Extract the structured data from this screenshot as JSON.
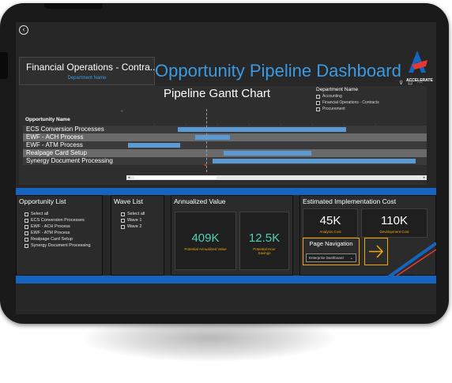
{
  "header": {
    "department_select": "Financial Operations - Contra...",
    "department_label": "Department Name",
    "title": "Opportunity Pipeline Dashboard",
    "logo_text": "ACCELERATE",
    "toolbar_glyphs": "⊽ ⊡ ⋯"
  },
  "gantt": {
    "title": "Pipeline Gantt Chart",
    "column_header": "Opportunity Name",
    "collapse_glyph": "«",
    "legend": {
      "title": "Department Name",
      "items": [
        {
          "label": "Accounting",
          "checked": false
        },
        {
          "label": "Financial Operations - Contracts",
          "checked": true
        },
        {
          "label": "Procurement",
          "checked": false
        }
      ]
    },
    "rows": [
      {
        "label": "ECS Conversion Processes",
        "start": 0.17,
        "end": 0.75
      },
      {
        "label": "EWF - ACH Process",
        "start": 0.23,
        "end": 0.35
      },
      {
        "label": "EWF - ATM Process",
        "start": 0.0,
        "end": 0.18
      },
      {
        "label": "Realpage Card Setup",
        "start": 0.33,
        "end": 0.63
      },
      {
        "label": "Synergy Document Processing",
        "start": 0.29,
        "end": 0.99
      }
    ]
  },
  "opportunity_list": {
    "title": "Opportunity List",
    "items": [
      "Select all",
      "ECS Conversion Processes",
      "EWF - ACH Process",
      "EWF - ATM Process",
      "Realpage Card Setup",
      "Synergy Document Processing"
    ]
  },
  "wave_list": {
    "title": "Wave List",
    "items": [
      "Select all",
      "Wave 1",
      "Wave 2"
    ]
  },
  "annualized": {
    "title": "Annualized Value",
    "value_1": "409K",
    "label_1": "Potential Annualized Value",
    "value_2": "12.5K",
    "label_2": "Potential Hour Savings"
  },
  "cost": {
    "title": "Estimated Implementation Cost",
    "value_1": "45K",
    "label_1": "Analysis Cost",
    "value_2": "110K",
    "label_2": "Development Cost"
  },
  "navigation": {
    "title": "Page Navigation",
    "selected": "Enterprise Dashboard",
    "chevron": "⌄"
  },
  "colors": {
    "accent_blue": "#3b9ae1",
    "band_blue": "#1565c0",
    "bar_blue": "#5b9bd5",
    "kpi_teal": "#4dd0b4",
    "label_orange": "#f0a500"
  }
}
